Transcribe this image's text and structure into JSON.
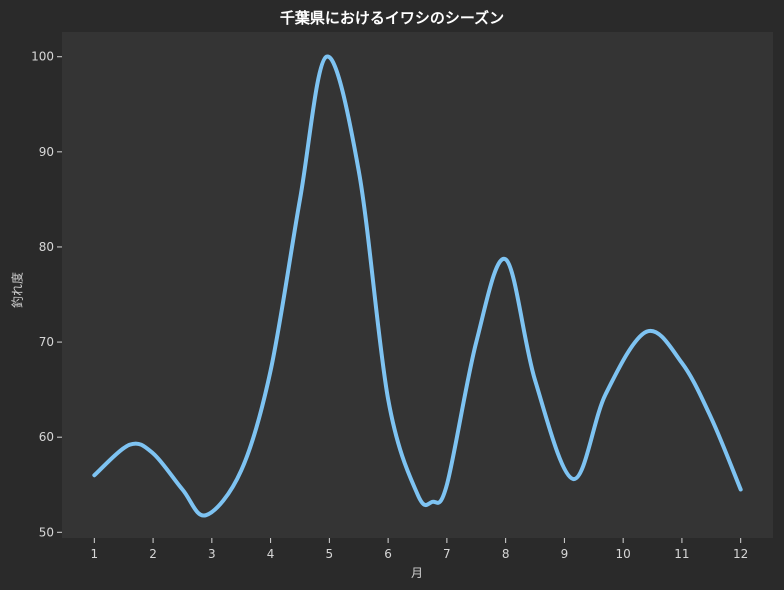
{
  "chart_data": {
    "type": "line",
    "title": "千葉県におけるイワシのシーズン",
    "xlabel": "月",
    "ylabel": "釣れ度",
    "xlim": [
      0.45,
      12.55
    ],
    "ylim": [
      49.4,
      102.6
    ],
    "x_ticks": [
      1,
      2,
      3,
      4,
      5,
      6,
      7,
      8,
      9,
      10,
      11,
      12
    ],
    "y_ticks": [
      50,
      60,
      70,
      80,
      90,
      100
    ],
    "grid": false,
    "curve": "smoothed",
    "series": [
      {
        "name": "",
        "x": [
          1,
          1.6,
          2,
          2.5,
          2.9,
          3.5,
          4,
          4.5,
          4.95,
          5.5,
          6,
          6.5,
          6.75,
          7,
          7.5,
          8,
          8.5,
          9.15,
          9.7,
          10.4,
          11,
          11.5,
          12
        ],
        "y": [
          56,
          59.2,
          58.3,
          54.5,
          51.8,
          56.5,
          67,
          85,
          100,
          88,
          64,
          54,
          53.2,
          55,
          70,
          78.7,
          66,
          55.6,
          64.5,
          71.1,
          67.8,
          62,
          54.5
        ]
      }
    ],
    "colors": {
      "background": "#2a2a2a",
      "plot_area": "#343434",
      "line": "#7ec3f2",
      "tick_text": "#d7d7d7",
      "axis_spine": "#d7d7d7"
    }
  }
}
